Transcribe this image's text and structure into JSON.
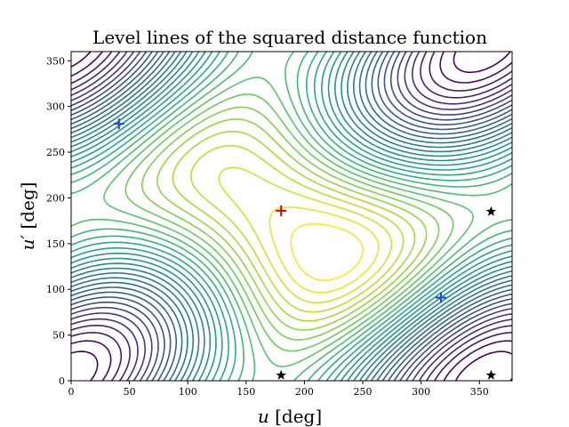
{
  "chart_data": {
    "type": "contour",
    "title": "Level lines of the squared distance function",
    "xlabel": "u [deg]",
    "ylabel": "u' [deg]",
    "xlabel_main": "u",
    "xlabel_unit": "[deg]",
    "ylabel_main": "u′",
    "ylabel_unit": "[deg]",
    "xlim": [
      0,
      360
    ],
    "ylim": [
      0,
      360
    ],
    "xticks": [
      0,
      50,
      100,
      150,
      200,
      250,
      300,
      350
    ],
    "yticks": [
      0,
      50,
      100,
      150,
      200,
      250,
      300,
      350
    ],
    "colormap": "viridis",
    "levels": 32,
    "maximum": {
      "u": 180,
      "u_prime": 186,
      "marker": "+",
      "color": "#e00000"
    },
    "minima": [
      {
        "u": 41,
        "u_prime": 281,
        "marker": "+",
        "color": "#1f3fff"
      },
      {
        "u": 317,
        "u_prime": 91,
        "marker": "+",
        "color": "#1f3fff"
      }
    ],
    "saddles": [
      {
        "u": 360,
        "u_prime": 185,
        "marker": "star",
        "color": "#000000"
      },
      {
        "u": 180,
        "u_prime": 6,
        "marker": "star",
        "color": "#000000"
      },
      {
        "u": 360,
        "u_prime": 6,
        "marker": "star",
        "color": "#000000"
      }
    ]
  }
}
